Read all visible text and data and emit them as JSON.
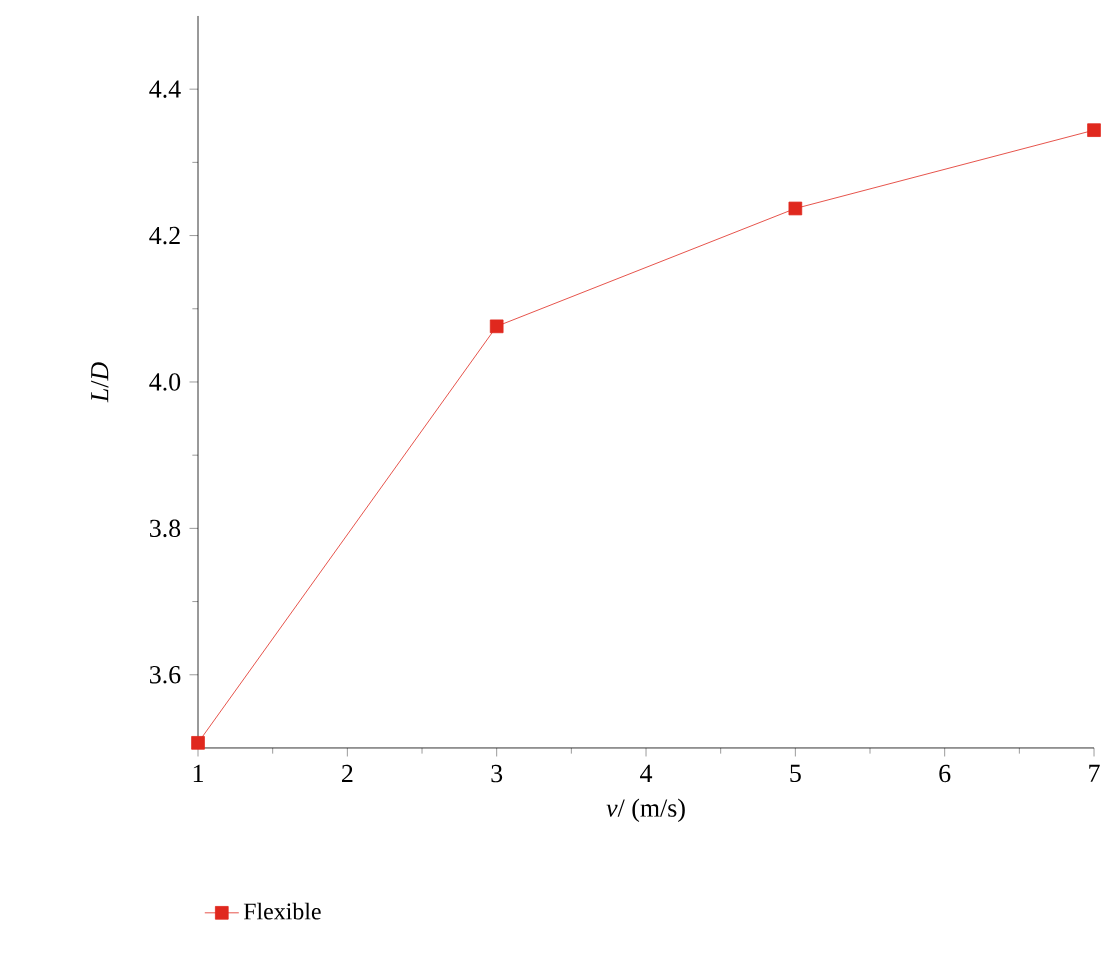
{
  "chart_data": {
    "type": "line",
    "xlabel": "*v*/ (m/s)",
    "ylabel": "*L*/*D*",
    "x": [
      1,
      3,
      5,
      7
    ],
    "series": [
      {
        "name": "Flexible",
        "color": "#e0281e",
        "values": [
          3.507,
          4.076,
          4.237,
          4.344
        ]
      }
    ],
    "xlim": [
      1,
      7
    ],
    "xticks": [
      1,
      2,
      3,
      4,
      5,
      6,
      7
    ],
    "ylim": [
      3.5,
      4.5
    ],
    "yticks": [
      3.6,
      3.8,
      {
        "value": 4.0,
        "label": "4.0"
      },
      4.2,
      4.4
    ],
    "marker": "square",
    "line_style": "solid",
    "grid": false,
    "legend": "bottom"
  }
}
